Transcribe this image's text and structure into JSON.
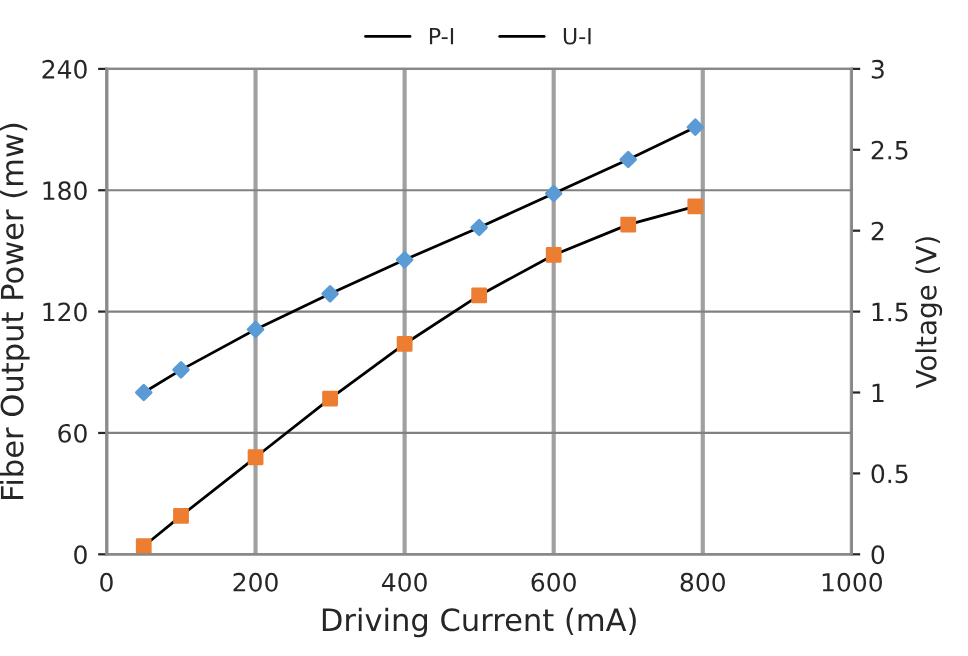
{
  "chart_data": {
    "type": "line",
    "xlabel": "Driving Current (mA)",
    "ylabel": "Fiber Output Power (mw)",
    "y2label": "Voltage (V)",
    "series": [
      {
        "name": "P-I",
        "color": "#ed7d31",
        "marker": "square",
        "x": [
          50,
          100,
          200,
          300,
          400,
          500,
          600,
          700,
          790
        ],
        "values": [
          4,
          19,
          48,
          77,
          104,
          128,
          148,
          163,
          172
        ]
      },
      {
        "name": "U-I",
        "color": "#5b9bd5",
        "marker": "diamond",
        "axis": "y2",
        "x": [
          50,
          100,
          200,
          300,
          400,
          500,
          600,
          700,
          790
        ],
        "values": [
          1.0,
          1.14,
          1.39,
          1.61,
          1.82,
          2.02,
          2.23,
          2.44,
          2.64
        ]
      }
    ],
    "xlim": [
      0,
      1000
    ],
    "xticks": [
      0,
      200,
      400,
      600,
      800,
      1000
    ],
    "ylim": [
      0,
      240
    ],
    "yticks": [
      0,
      60,
      120,
      180,
      240
    ],
    "y2lim": [
      0,
      3
    ],
    "y2ticks": [
      0,
      0.5,
      1,
      1.5,
      2,
      2.5,
      3
    ],
    "grid": true,
    "legend": "top",
    "line_style": "solid"
  }
}
